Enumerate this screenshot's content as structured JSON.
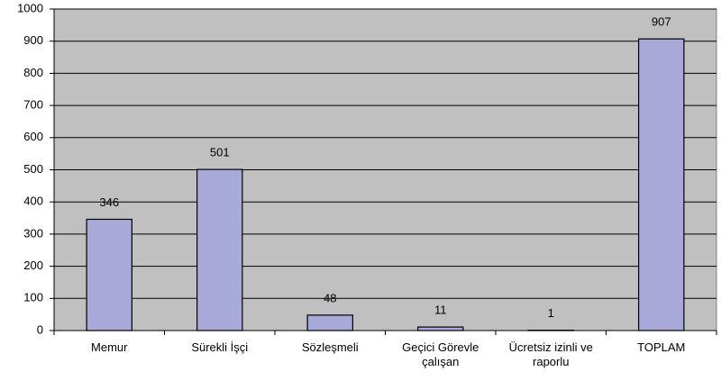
{
  "chart_data": {
    "type": "bar",
    "categories": [
      "Memur",
      "Sürekli İşçi",
      "Sözleşmeli",
      "Geçici Görevle çalışan",
      "Ücretsiz izinli ve raporlu",
      "TOPLAM"
    ],
    "values": [
      346,
      501,
      48,
      11,
      1,
      907
    ],
    "color": "#a9a9d9",
    "ylim": [
      0,
      1000
    ],
    "yticks": [
      0,
      100,
      200,
      300,
      400,
      500,
      600,
      700,
      800,
      900,
      1000
    ],
    "grid": true
  }
}
